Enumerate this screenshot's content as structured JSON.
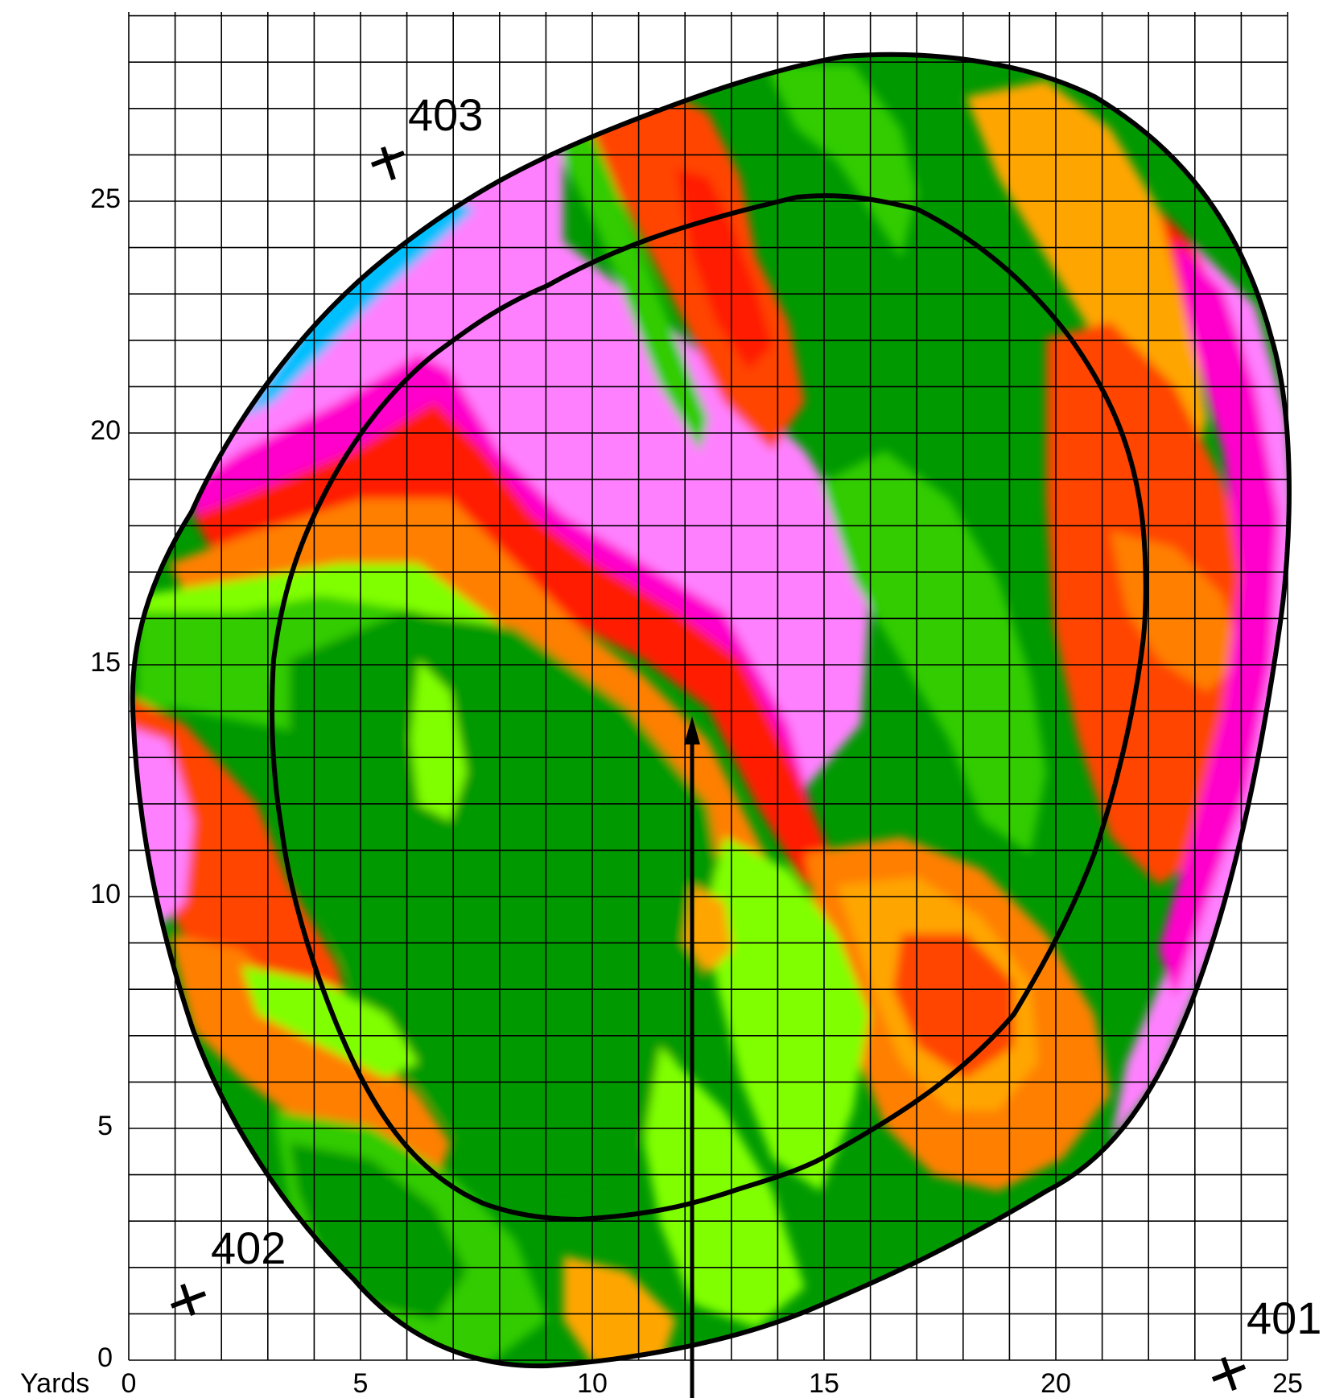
{
  "map": {
    "axis_unit_label": "Yards",
    "x_ticks": [
      "0",
      "5",
      "10",
      "15",
      "20",
      "25"
    ],
    "y_ticks": [
      "0",
      "5",
      "10",
      "15",
      "20",
      "25"
    ],
    "markers": [
      {
        "label": "401",
        "icon": "cross-marker-icon"
      },
      {
        "label": "402",
        "icon": "cross-marker-icon"
      },
      {
        "label": "403",
        "icon": "cross-marker-icon"
      }
    ],
    "features": [
      "green-boundary-outline",
      "inner-ring-outline",
      "approach-arrow",
      "reference-grid"
    ],
    "colors": {
      "outline": "#000000",
      "dark_green": "#009900",
      "green": "#33cc00",
      "light_green": "#80ff00",
      "orange": "#ffa500",
      "dark_orange": "#ff7f00",
      "orange_red": "#ff4500",
      "red": "#ff1a00",
      "magenta": "#ff00cc",
      "pink": "#ff80ff",
      "cyan": "#00bfff"
    }
  }
}
